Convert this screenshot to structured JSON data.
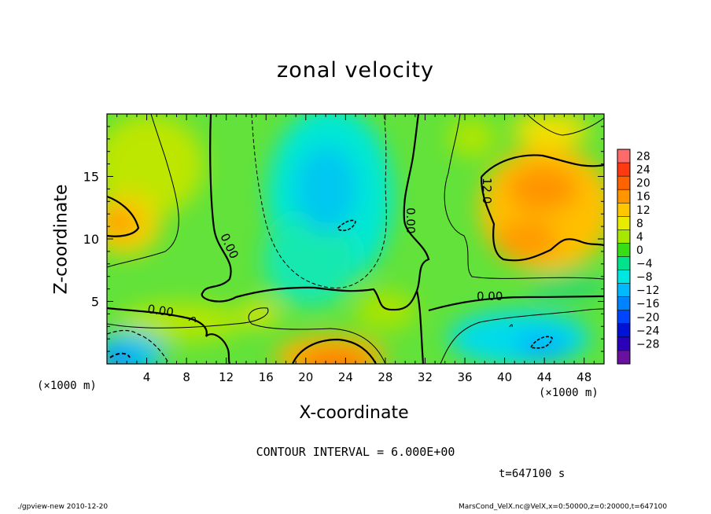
{
  "chart_data": {
    "type": "heatmap",
    "title": "zonal velocity",
    "xlabel": "X-coordinate",
    "ylabel": "Z-coordinate",
    "x_unit_left": "(×1000 m)",
    "x_unit_right": "(×1000 m)",
    "xlim": [
      0,
      50
    ],
    "ylim": [
      0,
      20
    ],
    "x_ticks": [
      4,
      8,
      12,
      16,
      20,
      24,
      28,
      32,
      36,
      40,
      44,
      48
    ],
    "y_ticks": [
      5,
      10,
      15
    ],
    "colorbar": {
      "levels": [
        28,
        24,
        20,
        16,
        12,
        8,
        4,
        0,
        -4,
        -8,
        -12,
        -16,
        -20,
        -24,
        -28
      ],
      "colors": [
        "#ff6a6a",
        "#ff3a12",
        "#ff6200",
        "#ff9500",
        "#ffc700",
        "#e8ec00",
        "#a6e800",
        "#39dd16",
        "#00e28c",
        "#00e6e0",
        "#00b9ff",
        "#0083ff",
        "#0044ff",
        "#0011d8",
        "#2a00b8",
        "#6a109e"
      ]
    },
    "contour_interval": 6.0,
    "contour_labels": [
      "0.00",
      "0.00",
      "0.00",
      "0.00",
      "12.0"
    ],
    "field_features": [
      {
        "kind": "max",
        "x": 1.5,
        "z": 11.0,
        "value": 14
      },
      {
        "kind": "max",
        "x": 22.5,
        "z": 1.0,
        "value": 16
      },
      {
        "kind": "max",
        "x": 43.5,
        "z": 13.0,
        "value": 15
      },
      {
        "kind": "max",
        "x": 43.0,
        "z": 10.0,
        "value": 14
      },
      {
        "kind": "min",
        "x": 23.0,
        "z": 12.0,
        "value": -10
      },
      {
        "kind": "min",
        "x": 1.0,
        "z": 0.5,
        "value": -13
      },
      {
        "kind": "min",
        "x": 43.5,
        "z": 2.0,
        "value": -11
      }
    ]
  },
  "annotations": {
    "contour_interval_text": "CONTOUR INTERVAL = 6.000E+00",
    "time_text": "t=647100 s",
    "footer_left": "./gpview-new   2010-12-20",
    "footer_right": "MarsCond_VelX.nc@VelX,x=0:50000,z=0:20000,t=647100"
  }
}
